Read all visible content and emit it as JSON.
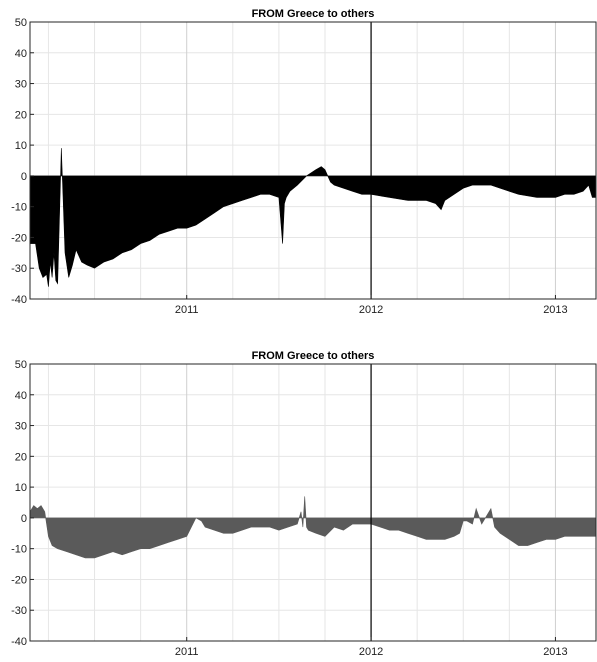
{
  "chart_data": [
    {
      "type": "area",
      "title": "FROM Greece to others",
      "xlabel": "",
      "ylabel": "",
      "ylim": [
        -40,
        50
      ],
      "yticks": [
        -40,
        -30,
        -20,
        -10,
        0,
        10,
        20,
        30,
        40,
        50
      ],
      "xlim": [
        2010.15,
        2013.22
      ],
      "xticks": [
        {
          "x": 2011,
          "label": "2011"
        },
        {
          "x": 2012,
          "label": "2012"
        },
        {
          "x": 2013,
          "label": "2013"
        }
      ],
      "minor_gridlines": [
        2010.25,
        2010.5,
        2010.75,
        2011.25,
        2011.5,
        2011.75,
        2012.25,
        2012.5,
        2012.75
      ],
      "vertical_marker": 2012.0,
      "grid": true,
      "fill_color": "#000000",
      "series": [
        {
          "x": [
            2010.15,
            2010.18,
            2010.2,
            2010.22,
            2010.24,
            2010.25,
            2010.26,
            2010.27,
            2010.28,
            2010.29,
            2010.3,
            2010.32,
            2010.34,
            2010.36,
            2010.38,
            2010.4,
            2010.43,
            2010.46,
            2010.5,
            2010.55,
            2010.6,
            2010.65,
            2010.7,
            2010.75,
            2010.8,
            2010.85,
            2010.9,
            2010.95,
            2011.0,
            2011.05,
            2011.1,
            2011.15,
            2011.2,
            2011.25,
            2011.3,
            2011.35,
            2011.4,
            2011.45,
            2011.5,
            2011.52,
            2011.53,
            2011.54,
            2011.56,
            2011.6,
            2011.65,
            2011.7,
            2011.73,
            2011.75,
            2011.78,
            2011.8,
            2011.85,
            2011.9,
            2011.95,
            2012.0,
            2012.1,
            2012.2,
            2012.3,
            2012.35,
            2012.38,
            2012.4,
            2012.45,
            2012.5,
            2012.55,
            2012.6,
            2012.65,
            2012.7,
            2012.75,
            2012.8,
            2012.9,
            2013.0,
            2013.05,
            2013.1,
            2013.15,
            2013.18,
            2013.2,
            2013.22
          ],
          "y": [
            -22,
            -22,
            -30,
            -33,
            -32,
            -36,
            -28,
            -33,
            -25,
            -34,
            -35,
            9,
            -25,
            -33,
            -29,
            -24,
            -28,
            -29,
            -30,
            -28,
            -27,
            -25,
            -24,
            -22,
            -21,
            -19,
            -18,
            -17,
            -17,
            -16,
            -14,
            -12,
            -10,
            -9,
            -8,
            -7,
            -6,
            -6,
            -7,
            -22,
            -9,
            -7,
            -5,
            -3,
            0,
            2,
            3,
            2,
            -2,
            -3,
            -4,
            -5,
            -6,
            -6,
            -7,
            -8,
            -8,
            -9,
            -11,
            -8,
            -6,
            -4,
            -3,
            -3,
            -3,
            -4,
            -5,
            -6,
            -7,
            -7,
            -6,
            -6,
            -5,
            -3,
            -7,
            -7
          ]
        }
      ]
    },
    {
      "type": "area",
      "title": "FROM Greece to others",
      "xlabel": "",
      "ylabel": "",
      "ylim": [
        -40,
        50
      ],
      "yticks": [
        -40,
        -30,
        -20,
        -10,
        0,
        10,
        20,
        30,
        40,
        50
      ],
      "xlim": [
        2010.15,
        2013.22
      ],
      "xticks": [
        {
          "x": 2011,
          "label": "2011"
        },
        {
          "x": 2012,
          "label": "2012"
        },
        {
          "x": 2013,
          "label": "2013"
        }
      ],
      "minor_gridlines": [
        2010.25,
        2010.5,
        2010.75,
        2011.25,
        2011.5,
        2011.75,
        2012.25,
        2012.5,
        2012.75
      ],
      "vertical_marker": 2012.0,
      "grid": true,
      "fill_color": "#5a5a5a",
      "series": [
        {
          "x": [
            2010.15,
            2010.17,
            2010.19,
            2010.21,
            2010.23,
            2010.25,
            2010.27,
            2010.3,
            2010.35,
            2010.4,
            2010.45,
            2010.5,
            2010.55,
            2010.6,
            2010.65,
            2010.7,
            2010.75,
            2010.8,
            2010.85,
            2010.9,
            2010.95,
            2011.0,
            2011.05,
            2011.08,
            2011.1,
            2011.15,
            2011.2,
            2011.25,
            2011.3,
            2011.35,
            2011.4,
            2011.45,
            2011.5,
            2011.55,
            2011.6,
            2011.62,
            2011.63,
            2011.64,
            2011.65,
            2011.66,
            2011.7,
            2011.75,
            2011.8,
            2011.85,
            2011.9,
            2011.95,
            2012.0,
            2012.05,
            2012.1,
            2012.15,
            2012.2,
            2012.25,
            2012.3,
            2012.35,
            2012.4,
            2012.45,
            2012.48,
            2012.5,
            2012.52,
            2012.55,
            2012.57,
            2012.6,
            2012.65,
            2012.67,
            2012.7,
            2012.75,
            2012.8,
            2012.85,
            2012.9,
            2012.95,
            2013.0,
            2013.05,
            2013.1,
            2013.15,
            2013.2,
            2013.22
          ],
          "y": [
            2,
            4,
            3,
            4,
            2,
            -6,
            -9,
            -10,
            -11,
            -12,
            -13,
            -13,
            -12,
            -11,
            -12,
            -11,
            -10,
            -10,
            -9,
            -8,
            -7,
            -6,
            0,
            -1,
            -3,
            -4,
            -5,
            -5,
            -4,
            -3,
            -3,
            -3,
            -4,
            -3,
            -2,
            2,
            -3,
            7,
            -3,
            -4,
            -5,
            -6,
            -3,
            -4,
            -2,
            -2,
            -2,
            -3,
            -4,
            -4,
            -5,
            -6,
            -7,
            -7,
            -7,
            -6,
            -5,
            -1,
            -1,
            -2,
            3,
            -2,
            3,
            -3,
            -5,
            -7,
            -9,
            -9,
            -8,
            -7,
            -7,
            -6,
            -6,
            -6,
            -6,
            -6
          ]
        }
      ]
    }
  ]
}
